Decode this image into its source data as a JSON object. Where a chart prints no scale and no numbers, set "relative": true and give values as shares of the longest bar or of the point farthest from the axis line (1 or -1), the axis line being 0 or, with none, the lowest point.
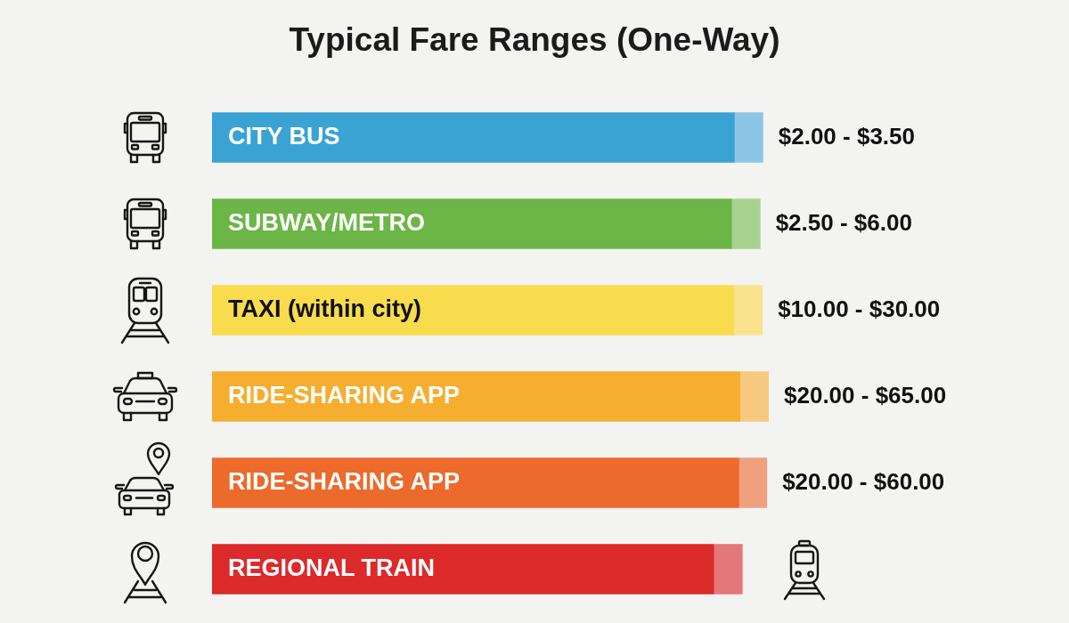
{
  "chart_data": {
    "type": "bar",
    "title": "Typical Fare Ranges (One-Way)",
    "orientation": "horizontal",
    "stacked": true,
    "relative": true,
    "categories": [
      "CITY BUS",
      "SUBWAY/METRO",
      "TAXI (within city)",
      "RIDE-SHARING APP",
      "RIDE-SHARING APP",
      "REGIONAL TRAIN"
    ],
    "series": [
      {
        "colors": [
          "#3aa3d4",
          "#6cb547",
          "#f8dc4e",
          "#f5ae2f",
          "#ec6a2c",
          "#dc2a2b"
        ],
        "values": [
          0.939,
          0.934,
          0.938,
          0.949,
          0.947,
          0.902
        ]
      },
      {
        "colors": [
          "#8dc6e4",
          "#a8d18e",
          "#f9e48d",
          "#f6c97f",
          "#f0a07d",
          "#e47777"
        ],
        "values": [
          0.051,
          0.051,
          0.051,
          0.051,
          0.05,
          0.051
        ]
      }
    ],
    "annotations": [
      "$2.00 - $3.50",
      "$2.50 - $6.00",
      "$10.00 - $30.00",
      "$20.00 - $65.00",
      "$20.00 - $60.00"
    ]
  }
}
